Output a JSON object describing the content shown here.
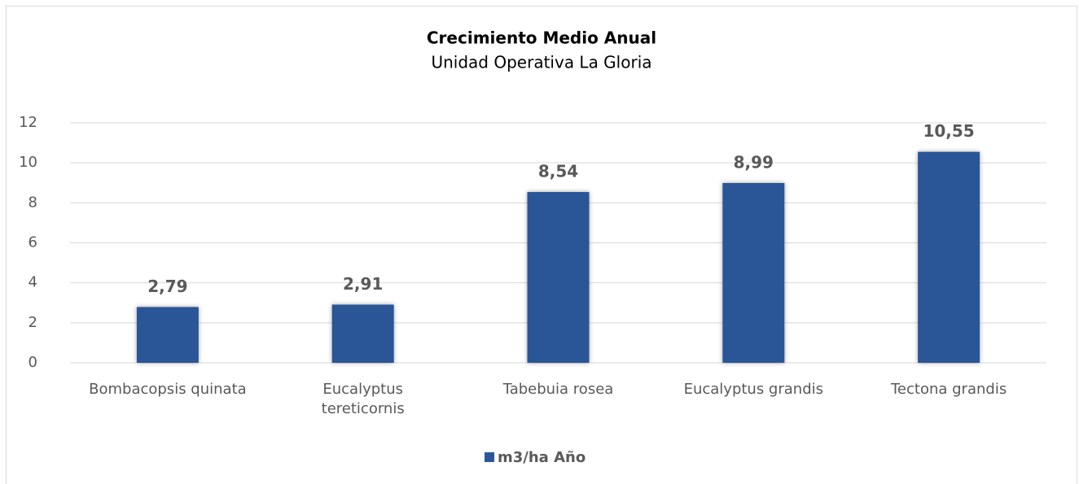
{
  "chart_data": {
    "type": "bar",
    "title": "Crecimiento Medio Anual",
    "subtitle": "Unidad Operativa La Gloria",
    "categories": [
      "Bombacopsis quinata",
      "Eucalyptus tereticornis",
      "Tabebuia rosea",
      "Eucalyptus grandis",
      "Tectona grandis"
    ],
    "series": [
      {
        "name": "m3/ha Año",
        "color": "#2b5797",
        "values": [
          2.79,
          2.91,
          8.54,
          8.99,
          10.55
        ],
        "value_labels": [
          "2,79",
          "2,91",
          "8,54",
          "8,99",
          "10,55"
        ]
      }
    ],
    "ylim": [
      0,
      12
    ],
    "yticks": [
      0,
      2,
      4,
      6,
      8,
      10,
      12
    ],
    "grid": true,
    "legend": "bottom"
  }
}
